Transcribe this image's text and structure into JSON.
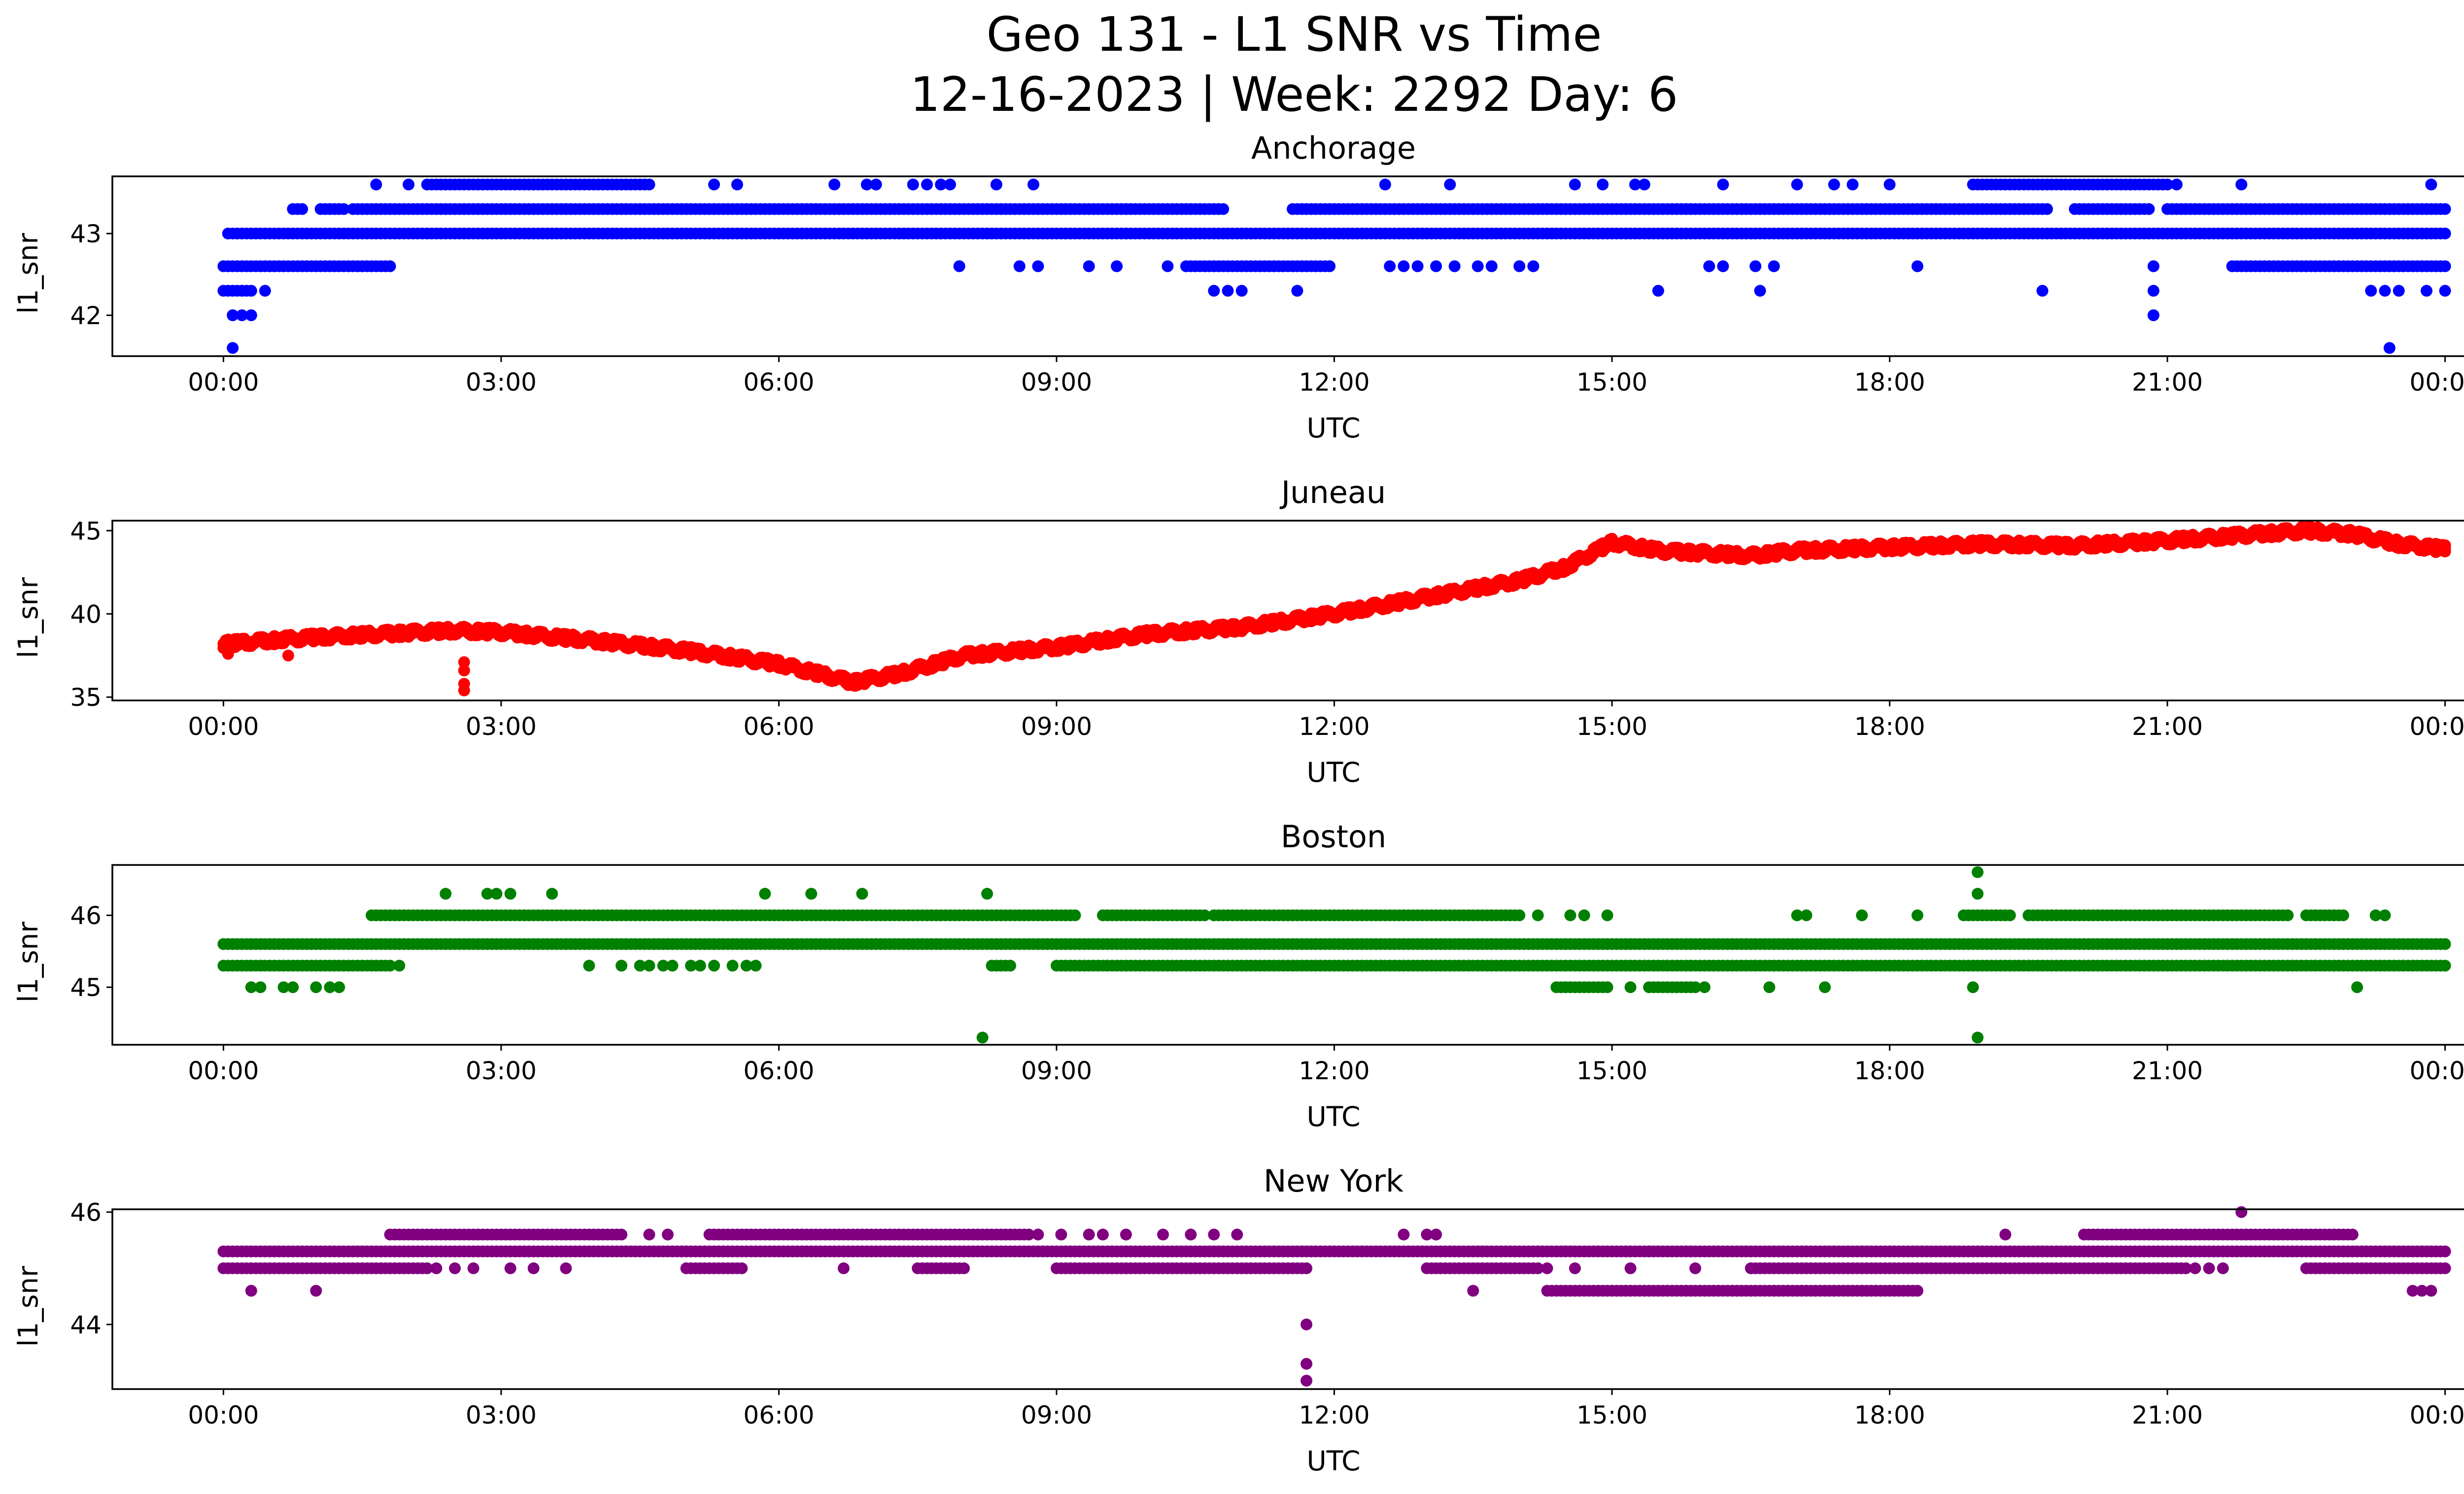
{
  "figure": {
    "title_line1": "Geo 131 - L1 SNR vs Time",
    "title_line2": "12-16-2023 | Week: 2292 Day: 6"
  },
  "x_tick_labels": [
    "00:00",
    "03:00",
    "06:00",
    "09:00",
    "12:00",
    "15:00",
    "18:00",
    "21:00",
    "00:00"
  ],
  "chart_data": [
    {
      "type": "scatter",
      "title": "Anchorage",
      "xlabel": "UTC",
      "ylabel": "l1_snr",
      "color": "#0000ff",
      "xlim": [
        -1.2,
        25.2
      ],
      "ylim": [
        41.5,
        43.7
      ],
      "yticks": [
        42,
        43
      ],
      "base_levels": [
        {
          "y": 43.0,
          "ranges": [
            [
              0.05,
              24.0
            ]
          ]
        },
        {
          "y": 43.3,
          "ranges": [
            [
              0.75,
              0.85
            ],
            [
              1.05,
              1.3
            ],
            [
              1.4,
              10.8
            ],
            [
              11.55,
              19.7
            ],
            [
              20.0,
              20.8
            ],
            [
              21.0,
              24.0
            ]
          ]
        },
        {
          "y": 42.6,
          "ranges": [
            [
              0.0,
              1.75
            ],
            [
              10.4,
              11.95
            ],
            [
              21.7,
              24.0
            ]
          ]
        },
        {
          "y": 43.6,
          "ranges": [
            [
              2.2,
              4.6
            ],
            [
              18.9,
              21.0
            ]
          ]
        },
        {
          "y": 42.3,
          "ranges": [
            [
              0.0,
              0.3
            ]
          ]
        }
      ],
      "points": [
        {
          "x": 0.1,
          "y": 41.6
        },
        {
          "x": 0.1,
          "y": 42.0
        },
        {
          "x": 0.2,
          "y": 42.0
        },
        {
          "x": 0.3,
          "y": 42.0
        },
        {
          "x": 0.45,
          "y": 42.3
        },
        {
          "x": 1.8,
          "y": 42.6
        },
        {
          "x": 1.65,
          "y": 43.6
        },
        {
          "x": 2.0,
          "y": 43.6
        },
        {
          "x": 5.3,
          "y": 43.6
        },
        {
          "x": 5.55,
          "y": 43.6
        },
        {
          "x": 6.6,
          "y": 43.6
        },
        {
          "x": 6.95,
          "y": 43.6
        },
        {
          "x": 7.05,
          "y": 43.6
        },
        {
          "x": 7.45,
          "y": 43.6
        },
        {
          "x": 7.6,
          "y": 43.6
        },
        {
          "x": 7.75,
          "y": 43.6
        },
        {
          "x": 7.85,
          "y": 43.6
        },
        {
          "x": 8.35,
          "y": 43.6
        },
        {
          "x": 8.75,
          "y": 43.6
        },
        {
          "x": 7.95,
          "y": 42.6
        },
        {
          "x": 8.6,
          "y": 42.6
        },
        {
          "x": 8.8,
          "y": 42.6
        },
        {
          "x": 9.35,
          "y": 42.6
        },
        {
          "x": 9.65,
          "y": 42.6
        },
        {
          "x": 10.2,
          "y": 42.6
        },
        {
          "x": 10.7,
          "y": 42.3
        },
        {
          "x": 10.85,
          "y": 42.3
        },
        {
          "x": 11.0,
          "y": 42.3
        },
        {
          "x": 11.6,
          "y": 42.3
        },
        {
          "x": 12.6,
          "y": 42.6
        },
        {
          "x": 12.75,
          "y": 42.6
        },
        {
          "x": 12.9,
          "y": 42.6
        },
        {
          "x": 13.1,
          "y": 42.6
        },
        {
          "x": 13.3,
          "y": 42.6
        },
        {
          "x": 13.55,
          "y": 42.6
        },
        {
          "x": 13.7,
          "y": 42.6
        },
        {
          "x": 14.0,
          "y": 42.6
        },
        {
          "x": 14.15,
          "y": 42.6
        },
        {
          "x": 12.55,
          "y": 43.6
        },
        {
          "x": 13.25,
          "y": 43.6
        },
        {
          "x": 14.6,
          "y": 43.6
        },
        {
          "x": 14.9,
          "y": 43.6
        },
        {
          "x": 15.25,
          "y": 43.6
        },
        {
          "x": 15.35,
          "y": 43.6
        },
        {
          "x": 16.2,
          "y": 43.6
        },
        {
          "x": 17.0,
          "y": 43.6
        },
        {
          "x": 17.4,
          "y": 43.6
        },
        {
          "x": 17.6,
          "y": 43.6
        },
        {
          "x": 18.0,
          "y": 43.6
        },
        {
          "x": 21.8,
          "y": 43.6
        },
        {
          "x": 23.85,
          "y": 43.6
        },
        {
          "x": 15.5,
          "y": 42.3
        },
        {
          "x": 16.05,
          "y": 42.6
        },
        {
          "x": 16.2,
          "y": 42.6
        },
        {
          "x": 16.55,
          "y": 42.6
        },
        {
          "x": 16.75,
          "y": 42.6
        },
        {
          "x": 16.6,
          "y": 42.3
        },
        {
          "x": 18.3,
          "y": 42.6
        },
        {
          "x": 19.65,
          "y": 42.3
        },
        {
          "x": 20.85,
          "y": 42.6
        },
        {
          "x": 20.85,
          "y": 42.3
        },
        {
          "x": 20.85,
          "y": 42.0
        },
        {
          "x": 23.2,
          "y": 42.3
        },
        {
          "x": 23.35,
          "y": 42.3
        },
        {
          "x": 23.5,
          "y": 42.3
        },
        {
          "x": 23.8,
          "y": 42.3
        },
        {
          "x": 24.0,
          "y": 42.3
        },
        {
          "x": 23.4,
          "y": 41.6
        },
        {
          "x": 20.6,
          "y": 43.6
        },
        {
          "x": 21.1,
          "y": 43.6
        }
      ]
    },
    {
      "type": "scatter",
      "title": "Juneau",
      "xlabel": "UTC",
      "ylabel": "l1_snr",
      "color": "#ff0000",
      "xlim": [
        -1.2,
        25.2
      ],
      "ylim": [
        34.8,
        45.6
      ],
      "yticks": [
        35,
        40,
        45
      ],
      "trend": [
        [
          0.0,
          38.2
        ],
        [
          1.0,
          38.6
        ],
        [
          2.5,
          39.0
        ],
        [
          3.0,
          38.9
        ],
        [
          4.0,
          38.4
        ],
        [
          5.0,
          37.8
        ],
        [
          6.0,
          37.0
        ],
        [
          6.8,
          35.9
        ],
        [
          7.3,
          36.4
        ],
        [
          8.0,
          37.5
        ],
        [
          9.0,
          38.0
        ],
        [
          10.0,
          38.8
        ],
        [
          11.0,
          39.2
        ],
        [
          12.0,
          40.0
        ],
        [
          13.0,
          41.0
        ],
        [
          14.0,
          42.0
        ],
        [
          14.5,
          42.8
        ],
        [
          15.0,
          44.3
        ],
        [
          15.5,
          43.8
        ],
        [
          16.5,
          43.5
        ],
        [
          17.0,
          43.8
        ],
        [
          18.0,
          44.0
        ],
        [
          19.0,
          44.2
        ],
        [
          20.0,
          44.1
        ],
        [
          21.0,
          44.4
        ],
        [
          22.0,
          44.8
        ],
        [
          22.5,
          45.0
        ],
        [
          23.0,
          44.8
        ],
        [
          23.5,
          44.2
        ],
        [
          24.0,
          43.9
        ]
      ],
      "points": [
        {
          "x": 2.6,
          "y": 37.1
        },
        {
          "x": 2.6,
          "y": 36.6
        },
        {
          "x": 2.6,
          "y": 35.8
        },
        {
          "x": 2.6,
          "y": 35.4
        },
        {
          "x": 0.05,
          "y": 37.6
        },
        {
          "x": 0.7,
          "y": 37.5
        }
      ]
    },
    {
      "type": "scatter",
      "title": "Boston",
      "xlabel": "UTC",
      "ylabel": "l1_snr",
      "color": "#008000",
      "xlim": [
        -1.2,
        25.2
      ],
      "ylim": [
        44.2,
        46.7
      ],
      "yticks": [
        45,
        46
      ],
      "base_levels": [
        {
          "y": 45.6,
          "ranges": [
            [
              0.0,
              24.0
            ]
          ]
        },
        {
          "y": 45.3,
          "ranges": [
            [
              0.0,
              1.8
            ],
            [
              8.3,
              8.5
            ],
            [
              9.0,
              9.3
            ],
            [
              9.35,
              24.0
            ]
          ]
        },
        {
          "y": 46.0,
          "ranges": [
            [
              1.6,
              9.2
            ],
            [
              9.5,
              10.6
            ],
            [
              10.7,
              14.0
            ],
            [
              18.8,
              19.3
            ],
            [
              19.5,
              21.0
            ],
            [
              21.0,
              22.3
            ],
            [
              22.5,
              22.9
            ]
          ]
        },
        {
          "y": 45.0,
          "ranges": [
            [
              14.4,
              14.9
            ],
            [
              15.4,
              15.9
            ]
          ]
        }
      ],
      "points": [
        {
          "x": 0.3,
          "y": 45.0
        },
        {
          "x": 0.4,
          "y": 45.0
        },
        {
          "x": 0.65,
          "y": 45.0
        },
        {
          "x": 0.75,
          "y": 45.0
        },
        {
          "x": 1.0,
          "y": 45.0
        },
        {
          "x": 1.15,
          "y": 45.0
        },
        {
          "x": 1.25,
          "y": 45.0
        },
        {
          "x": 1.9,
          "y": 45.3
        },
        {
          "x": 2.4,
          "y": 46.3
        },
        {
          "x": 2.85,
          "y": 46.3
        },
        {
          "x": 2.95,
          "y": 46.3
        },
        {
          "x": 3.1,
          "y": 46.3
        },
        {
          "x": 3.55,
          "y": 46.3
        },
        {
          "x": 5.85,
          "y": 46.3
        },
        {
          "x": 6.35,
          "y": 46.3
        },
        {
          "x": 6.9,
          "y": 46.3
        },
        {
          "x": 8.25,
          "y": 46.3
        },
        {
          "x": 3.95,
          "y": 45.3
        },
        {
          "x": 4.3,
          "y": 45.3
        },
        {
          "x": 4.5,
          "y": 45.3
        },
        {
          "x": 4.6,
          "y": 45.3
        },
        {
          "x": 4.75,
          "y": 45.3
        },
        {
          "x": 4.85,
          "y": 45.3
        },
        {
          "x": 5.05,
          "y": 45.3
        },
        {
          "x": 5.15,
          "y": 45.3
        },
        {
          "x": 5.3,
          "y": 45.3
        },
        {
          "x": 5.5,
          "y": 45.3
        },
        {
          "x": 5.65,
          "y": 45.3
        },
        {
          "x": 5.75,
          "y": 45.3
        },
        {
          "x": 8.2,
          "y": 44.3
        },
        {
          "x": 14.2,
          "y": 46.0
        },
        {
          "x": 14.55,
          "y": 46.0
        },
        {
          "x": 14.7,
          "y": 46.0
        },
        {
          "x": 14.95,
          "y": 46.0
        },
        {
          "x": 14.95,
          "y": 45.0
        },
        {
          "x": 15.2,
          "y": 45.0
        },
        {
          "x": 16.0,
          "y": 45.0
        },
        {
          "x": 16.7,
          "y": 45.0
        },
        {
          "x": 17.3,
          "y": 45.0
        },
        {
          "x": 17.0,
          "y": 46.0
        },
        {
          "x": 17.1,
          "y": 46.0
        },
        {
          "x": 17.7,
          "y": 46.0
        },
        {
          "x": 18.3,
          "y": 46.0
        },
        {
          "x": 18.95,
          "y": 46.3
        },
        {
          "x": 18.95,
          "y": 46.6
        },
        {
          "x": 18.9,
          "y": 45.0
        },
        {
          "x": 18.95,
          "y": 44.3
        },
        {
          "x": 23.05,
          "y": 45.0
        },
        {
          "x": 23.25,
          "y": 46.0
        },
        {
          "x": 23.35,
          "y": 46.0
        }
      ]
    },
    {
      "type": "scatter",
      "title": "New York",
      "xlabel": "UTC",
      "ylabel": "l1_snr",
      "color": "#800080",
      "xlim": [
        -1.2,
        25.2
      ],
      "ylim": [
        42.85,
        46.05
      ],
      "yticks": [
        44,
        46
      ],
      "base_levels": [
        {
          "y": 45.3,
          "ranges": [
            [
              0.0,
              24.0
            ]
          ]
        },
        {
          "y": 45.0,
          "ranges": [
            [
              0.0,
              2.2
            ],
            [
              5.0,
              5.6
            ],
            [
              7.5,
              8.0
            ],
            [
              9.0,
              11.7
            ],
            [
              13.0,
              14.2
            ],
            [
              16.5,
              21.2
            ],
            [
              22.5,
              24.0
            ]
          ]
        },
        {
          "y": 45.6,
          "ranges": [
            [
              1.8,
              4.3
            ],
            [
              5.25,
              8.7
            ],
            [
              20.1,
              23.0
            ]
          ]
        },
        {
          "y": 44.6,
          "ranges": [
            [
              14.3,
              18.3
            ]
          ]
        }
      ],
      "points": [
        {
          "x": 0.3,
          "y": 44.6
        },
        {
          "x": 1.0,
          "y": 44.6
        },
        {
          "x": 2.3,
          "y": 45.0
        },
        {
          "x": 2.5,
          "y": 45.0
        },
        {
          "x": 2.7,
          "y": 45.0
        },
        {
          "x": 3.1,
          "y": 45.0
        },
        {
          "x": 3.35,
          "y": 45.0
        },
        {
          "x": 3.7,
          "y": 45.0
        },
        {
          "x": 4.6,
          "y": 45.6
        },
        {
          "x": 4.8,
          "y": 45.6
        },
        {
          "x": 6.7,
          "y": 45.0
        },
        {
          "x": 8.8,
          "y": 45.6
        },
        {
          "x": 9.05,
          "y": 45.6
        },
        {
          "x": 9.35,
          "y": 45.6
        },
        {
          "x": 9.5,
          "y": 45.6
        },
        {
          "x": 9.75,
          "y": 45.6
        },
        {
          "x": 10.15,
          "y": 45.6
        },
        {
          "x": 10.45,
          "y": 45.6
        },
        {
          "x": 10.7,
          "y": 45.6
        },
        {
          "x": 10.95,
          "y": 45.6
        },
        {
          "x": 11.7,
          "y": 44.0
        },
        {
          "x": 11.7,
          "y": 43.3
        },
        {
          "x": 11.7,
          "y": 43.0
        },
        {
          "x": 12.75,
          "y": 45.6
        },
        {
          "x": 13.0,
          "y": 45.6
        },
        {
          "x": 13.1,
          "y": 45.6
        },
        {
          "x": 13.5,
          "y": 44.6
        },
        {
          "x": 14.3,
          "y": 45.0
        },
        {
          "x": 14.6,
          "y": 45.0
        },
        {
          "x": 15.2,
          "y": 45.0
        },
        {
          "x": 15.4,
          "y": 45.3
        },
        {
          "x": 15.9,
          "y": 45.0
        },
        {
          "x": 19.25,
          "y": 45.6
        },
        {
          "x": 21.8,
          "y": 46.0
        },
        {
          "x": 21.3,
          "y": 45.0
        },
        {
          "x": 21.45,
          "y": 45.0
        },
        {
          "x": 21.6,
          "y": 45.0
        },
        {
          "x": 23.65,
          "y": 44.6
        },
        {
          "x": 23.75,
          "y": 44.6
        },
        {
          "x": 23.85,
          "y": 44.6
        }
      ]
    }
  ]
}
